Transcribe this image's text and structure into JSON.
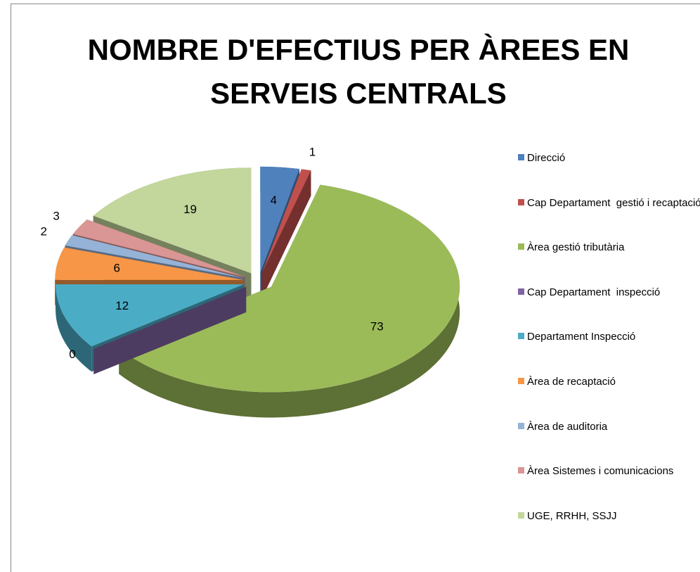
{
  "chart_data": {
    "type": "pie",
    "title": "NOMBRE D'EFECTIUS PER ÀREES EN SERVEIS CENTRALS",
    "categories": [
      "Direcció",
      "Cap Departament  gestió i recaptació",
      "Àrea gestió tributària",
      "Cap Departament  inspecció",
      "Departament Inspecció",
      "Àrea de recaptació",
      "Àrea de auditoria",
      "Àrea Sistemes i comunicacions",
      "UGE, RRHH, SSJJ"
    ],
    "values": [
      4,
      1,
      73,
      0,
      12,
      6,
      2,
      3,
      19
    ],
    "colors": [
      "#4f81bd",
      "#c0504d",
      "#9bbb59",
      "#8064a2",
      "#4bacc6",
      "#f79646",
      "#95b3d7",
      "#d99694",
      "#c3d69b"
    ],
    "legend": "right"
  }
}
